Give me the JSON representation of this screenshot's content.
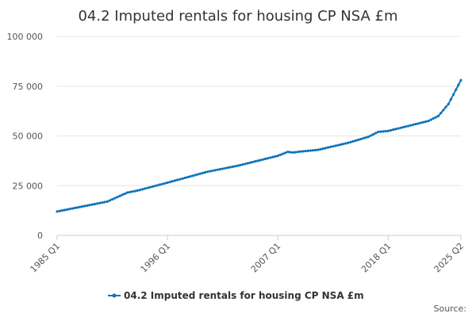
{
  "chart_data": {
    "type": "line",
    "title": "04.2 Imputed rentals for housing CP NSA £m",
    "source": "Source:",
    "grid": true,
    "categories": [
      "1985 Q1",
      null,
      null,
      null,
      null,
      null,
      null,
      null,
      null,
      null,
      null,
      null,
      null,
      null,
      null,
      null,
      null,
      null,
      null,
      null,
      null,
      null,
      null,
      null,
      null,
      null,
      null,
      null,
      null,
      null,
      null,
      null,
      null,
      null,
      null,
      null,
      null,
      null,
      null,
      null,
      null,
      null,
      null,
      null,
      "1996 Q1",
      null,
      null,
      null,
      null,
      null,
      null,
      null,
      null,
      null,
      null,
      null,
      null,
      null,
      null,
      null,
      null,
      null,
      null,
      null,
      null,
      null,
      null,
      null,
      null,
      null,
      null,
      null,
      null,
      null,
      null,
      null,
      null,
      null,
      null,
      null,
      null,
      null,
      null,
      null,
      null,
      null,
      null,
      null,
      "2007 Q1",
      null,
      null,
      null,
      null,
      null,
      null,
      null,
      null,
      null,
      null,
      null,
      null,
      null,
      null,
      null,
      null,
      null,
      null,
      null,
      null,
      null,
      null,
      null,
      null,
      null,
      null,
      null,
      null,
      null,
      null,
      null,
      null,
      null,
      null,
      null,
      null,
      null,
      null,
      null,
      null,
      null,
      null,
      null,
      "2018 Q1",
      null,
      null,
      null,
      null,
      null,
      null,
      null,
      null,
      null,
      null,
      null,
      null,
      null,
      null,
      null,
      null,
      null,
      null,
      null,
      null,
      null,
      null,
      null,
      null,
      null,
      null,
      null,
      null,
      "2025 Q2"
    ],
    "series": [
      {
        "name": "04.2 Imputed rentals for housing CP NSA £m",
        "color": "#0f74b8",
        "values": [
          12000,
          12250,
          12500,
          12750,
          13000,
          13250,
          13500,
          13750,
          14000,
          14250,
          14500,
          14750,
          15000,
          15250,
          15500,
          15750,
          16000,
          16250,
          16500,
          16750,
          17000,
          17560,
          18130,
          18690,
          19250,
          19810,
          20380,
          20940,
          21500,
          21750,
          22000,
          22250,
          22500,
          22830,
          23170,
          23500,
          23830,
          24170,
          24500,
          24830,
          25170,
          25500,
          25830,
          26170,
          26500,
          26840,
          27190,
          27530,
          27880,
          28220,
          28560,
          28910,
          29250,
          29590,
          29940,
          30280,
          30630,
          30970,
          31310,
          31660,
          32000,
          32250,
          32500,
          32750,
          33000,
          33250,
          33500,
          33750,
          34000,
          34250,
          34500,
          34750,
          35000,
          35310,
          35630,
          35940,
          36250,
          36560,
          36880,
          37190,
          37500,
          37810,
          38130,
          38440,
          38750,
          39060,
          39380,
          39690,
          40000,
          40500,
          41000,
          41500,
          42000,
          41800,
          41700,
          41800,
          42000,
          42130,
          42250,
          42380,
          42500,
          42630,
          42750,
          42880,
          43000,
          43290,
          43580,
          43880,
          44170,
          44460,
          44750,
          45040,
          45330,
          45630,
          45920,
          46210,
          46500,
          46880,
          47250,
          47630,
          48000,
          48380,
          48750,
          49130,
          49500,
          50130,
          50750,
          51380,
          52000,
          52130,
          52250,
          52380,
          52500,
          52810,
          53130,
          53440,
          53750,
          54060,
          54380,
          54690,
          55000,
          55310,
          55630,
          55940,
          56250,
          56560,
          56880,
          57190,
          57500,
          58130,
          58750,
          59380,
          60000,
          61500,
          63000,
          64500,
          66000,
          68400,
          70800,
          73200,
          75600,
          78000
        ]
      }
    ],
    "ylim": [
      0,
      100000
    ],
    "yticks": [
      0,
      {
        "value": 25000,
        "label": "25 000"
      },
      {
        "value": 50000,
        "label": "50 000"
      },
      {
        "value": 75000,
        "label": "75 000"
      },
      {
        "value": 100000,
        "label": "100 000"
      }
    ]
  }
}
